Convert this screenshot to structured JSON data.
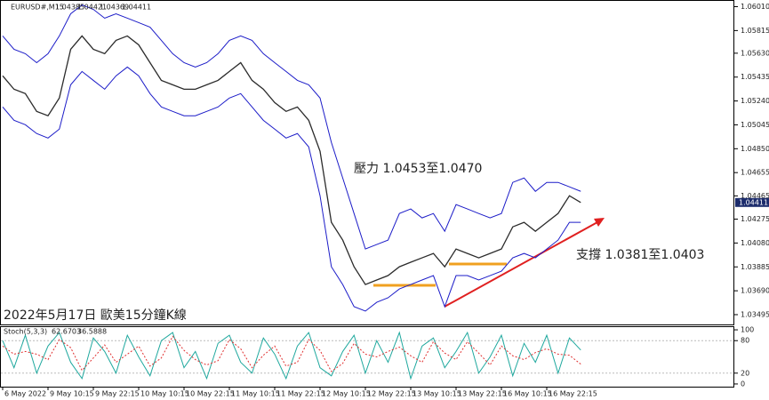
{
  "chart_data": [
    {
      "type": "line",
      "title": "EURUSD#,M15",
      "last_bar": {
        "open": 1.04385,
        "high": 1.04421,
        "low": 1.04369
      },
      "annotations": [
        "壓力 1.0453至1.0470",
        "支撐 1.0381至1.0403",
        "2022年5月17日 歐美15分鐘K線"
      ],
      "ylim": [
        1.03415,
        1.0605
      ],
      "yticks": [
        {
          "value": 1.0601,
          "label": "1.06010"
        },
        1.05815,
        {
          "value": 1.0563,
          "label": "1.05630"
        },
        1.05435,
        {
          "value": 1.0524,
          "label": "1.05240"
        },
        1.05045,
        {
          "value": 1.0485,
          "label": "1.04850"
        },
        1.04655,
        1.04465,
        1.04275,
        {
          "value": 1.0408,
          "label": "1.04080"
        },
        1.03885,
        {
          "value": 1.0369,
          "label": "1.03690"
        },
        1.03495
      ],
      "series": [
        {
          "color": "#2b2b2b",
          "values": [
            1.05445,
            1.05336,
            1.053,
            1.05155,
            1.05119,
            1.05264,
            1.05662,
            1.05771,
            1.05662,
            1.05626,
            1.05735,
            1.05771,
            1.05698,
            1.05553,
            1.05408,
            1.05372,
            1.05336,
            1.05336,
            1.05372,
            1.05408,
            1.05481,
            1.05553,
            1.05408,
            1.05336,
            1.05227,
            1.05155,
            1.05191,
            1.05082,
            1.04829,
            1.04249,
            1.04104,
            1.03886,
            1.03741,
            1.03778,
            1.03814,
            1.03886,
            1.03923,
            1.03959,
            1.03995,
            1.03886,
            1.04031,
            1.03995,
            1.03959,
            1.03995,
            1.04031,
            1.04212,
            1.04249,
            1.04176,
            1.04249,
            1.04321,
            1.04466,
            1.04411
          ]
        },
        {
          "color": "#1c1cc8",
          "values": [
            1.05771,
            1.05662,
            1.05626,
            1.05553,
            1.05626,
            1.05771,
            1.05952,
            1.06024,
            1.05988,
            1.05916,
            1.05952,
            1.05916,
            1.0588,
            1.05843,
            1.05735,
            1.05626,
            1.05553,
            1.05517,
            1.05553,
            1.05626,
            1.05735,
            1.05771,
            1.05735,
            1.05626,
            1.05553,
            1.05481,
            1.05408,
            1.05372,
            1.05264,
            1.04901,
            1.04611,
            1.04321,
            1.04031,
            1.04068,
            1.04104,
            1.04321,
            1.04358,
            1.04285,
            1.04321,
            1.04176,
            1.04394,
            1.04358,
            1.04321,
            1.04285,
            1.04321,
            1.04575,
            1.04611,
            1.04502,
            1.04575,
            1.04575,
            1.04539,
            1.04502
          ]
        },
        {
          "color": "#1c1cc8",
          "values": [
            1.05191,
            1.05082,
            1.05046,
            1.04974,
            1.04937,
            1.0501,
            1.05372,
            1.05481,
            1.05408,
            1.05336,
            1.05445,
            1.05517,
            1.05445,
            1.053,
            1.05191,
            1.05155,
            1.05119,
            1.05119,
            1.05155,
            1.05191,
            1.05264,
            1.053,
            1.05191,
            1.05082,
            1.0501,
            1.04937,
            1.04974,
            1.04865,
            1.04466,
            1.03886,
            1.03741,
            1.0356,
            1.03524,
            1.03596,
            1.03633,
            1.03705,
            1.03741,
            1.03778,
            1.03814,
            1.0356,
            1.03814,
            1.03814,
            1.03778,
            1.03814,
            1.0385,
            1.03959,
            1.03995,
            1.03959,
            1.04031,
            1.04104,
            1.04249,
            1.04249
          ]
        }
      ]
    },
    {
      "type": "line",
      "title": "Stoch(5,3,3)",
      "categories": [
        "6 May 2022",
        null,
        null,
        null,
        "9 May 10:15",
        null,
        null,
        null,
        "9 May 22:15",
        null,
        null,
        null,
        "10 May 10:15",
        null,
        null,
        null,
        "10 May 22:15",
        null,
        null,
        null,
        "11 May 10:15",
        null,
        null,
        null,
        "11 May 22:15",
        null,
        null,
        null,
        "12 May 10:15",
        null,
        null,
        null,
        "12 May 22:15",
        null,
        null,
        null,
        "13 May 10:15",
        null,
        null,
        null,
        "13 May 22:15",
        null,
        null,
        null,
        "16 May 10:15",
        null,
        null,
        null,
        "16 May 22:15",
        null,
        null,
        null
      ],
      "ylim": [
        -5,
        105
      ],
      "yticks": [
        100,
        80,
        20,
        0
      ],
      "series": [
        {
          "color": "#1fa89e",
          "values": [
            80,
            30,
            90,
            20,
            70,
            95,
            40,
            10,
            85,
            60,
            20,
            90,
            50,
            15,
            80,
            95,
            30,
            60,
            10,
            75,
            90,
            40,
            20,
            85,
            55,
            10,
            70,
            95,
            30,
            15,
            60,
            90,
            20,
            80,
            40,
            95,
            10,
            70,
            85,
            30,
            60,
            95,
            20,
            50,
            90,
            15,
            75,
            40,
            90,
            20,
            85,
            62.6703
          ]
        },
        {
          "color": "#e03030",
          "values": [
            70,
            55,
            60,
            55,
            45,
            82,
            67,
            25,
            48,
            72,
            40,
            55,
            70,
            33,
            48,
            88,
            62,
            45,
            35,
            43,
            82,
            65,
            30,
            53,
            70,
            33,
            40,
            82,
            62,
            23,
            38,
            75,
            55,
            50,
            60,
            68,
            52,
            40,
            78,
            57,
            45,
            78,
            57,
            35,
            70,
            52,
            45,
            58,
            65,
            55,
            53,
            36.5888
          ]
        }
      ]
    }
  ]
}
